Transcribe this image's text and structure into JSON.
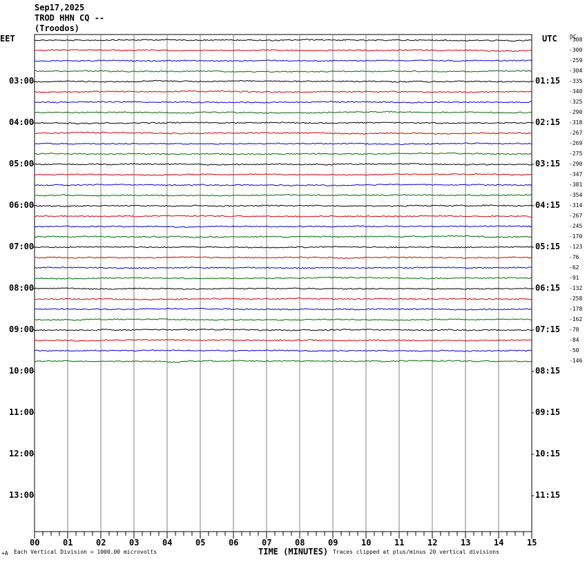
{
  "header": {
    "date": "Sep17,2025",
    "station": "TROD HHN CQ --",
    "location": "(Troodos)"
  },
  "left_tz": "EET",
  "right_tz": "UTC",
  "dc_label": "DC",
  "footer": {
    "xlabel": "TIME (MINUTES)",
    "scale_note": "Each Vertical Division = 1000.00 microvolts",
    "clip_note": "Traces clipped at plus/minus 20 vertical divisions",
    "corner_mark": "+A"
  },
  "colors": {
    "trace_cycle": [
      "#000000",
      "#cc0000",
      "#0000cc",
      "#006600"
    ],
    "grid": "#808080"
  },
  "chart_data": {
    "type": "line",
    "title": "TROD HHN CQ -- (Troodos)",
    "xlabel": "TIME (MINUTES)",
    "x_ticks": [
      "00",
      "01",
      "02",
      "03",
      "04",
      "05",
      "06",
      "07",
      "08",
      "09",
      "10",
      "11",
      "12",
      "13",
      "14",
      "15"
    ],
    "xlim": [
      0,
      15
    ],
    "left_hour_labels": [
      "03:00",
      "04:00",
      "05:00",
      "06:00",
      "07:00",
      "08:00",
      "09:00",
      "10:00",
      "11:00",
      "12:00",
      "13:00"
    ],
    "right_hour_labels": [
      "01:15",
      "02:15",
      "03:15",
      "04:15",
      "05:15",
      "06:15",
      "07:15",
      "08:15",
      "09:15",
      "10:15",
      "11:15"
    ],
    "trace_count": 32,
    "dc_offsets": [
      -308,
      -300,
      -259,
      -304,
      -335,
      -340,
      -325,
      -290,
      -318,
      -267,
      -269,
      -275,
      -290,
      -347,
      -381,
      -354,
      -314,
      -267,
      -245,
      -170,
      -123,
      -76,
      -62,
      -91,
      -132,
      -258,
      -178,
      -162,
      -78,
      -84,
      -50,
      -146
    ]
  }
}
